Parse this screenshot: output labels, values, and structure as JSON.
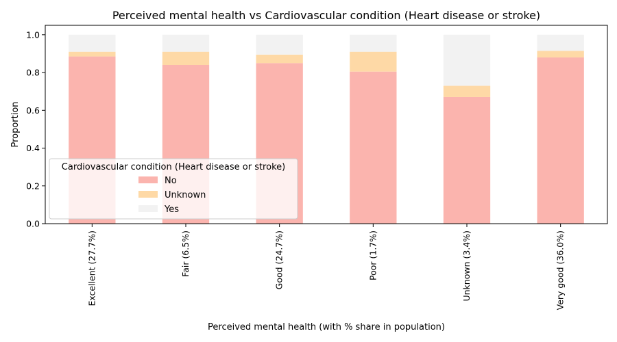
{
  "chart_data": {
    "type": "bar",
    "stacked": true,
    "title": "Perceived mental health  vs Cardiovascular condition (Heart disease or stroke)",
    "xlabel": "Perceived mental health  (with % share in population)",
    "ylabel": "Proportion",
    "ylim": [
      0,
      1.05
    ],
    "yticks": [
      "0.0",
      "0.2",
      "0.4",
      "0.6",
      "0.8",
      "1.0"
    ],
    "categories": [
      "Excellent (27.7%)",
      "Fair (6.5%)",
      "Good (24.7%)",
      "Poor (1.7%)",
      "Unknown (3.4%)",
      "Very good (36.0%)"
    ],
    "series": [
      {
        "name": "No",
        "color": "#fbb4ae",
        "values": [
          0.885,
          0.84,
          0.85,
          0.805,
          0.67,
          0.88
        ]
      },
      {
        "name": "Unknown",
        "color": "#fed9a6",
        "values": [
          0.025,
          0.07,
          0.045,
          0.105,
          0.06,
          0.035
        ]
      },
      {
        "name": "Yes",
        "color": "#f2f2f2",
        "values": [
          0.09,
          0.09,
          0.105,
          0.09,
          0.27,
          0.085
        ]
      }
    ],
    "legend": {
      "title": "Cardiovascular condition (Heart disease or stroke)",
      "position": "lower-left"
    },
    "grid": false
  }
}
